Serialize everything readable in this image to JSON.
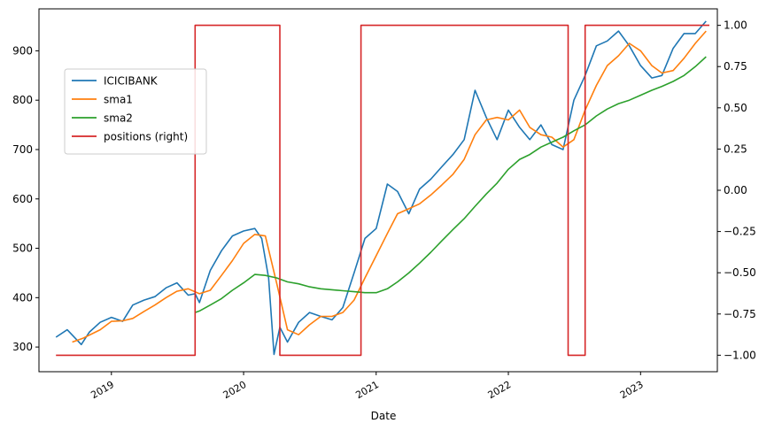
{
  "chart_data": {
    "type": "line",
    "title": "",
    "xlabel": "Date",
    "ylabel": "",
    "y2label": "",
    "xlim": [
      "2018-06-15",
      "2023-08-01"
    ],
    "ylim": [
      250,
      985
    ],
    "y2lim": [
      -1.1,
      1.1
    ],
    "x_ticks": [
      "2019",
      "2020",
      "2021",
      "2022",
      "2023"
    ],
    "x_tick_dates": [
      "2019-01-01",
      "2020-01-01",
      "2021-01-01",
      "2022-01-01",
      "2023-01-01"
    ],
    "y_ticks": [
      300,
      400,
      500,
      600,
      700,
      800,
      900
    ],
    "y2_ticks": [
      -1.0,
      -0.75,
      -0.5,
      -0.25,
      0.0,
      0.25,
      0.5,
      0.75,
      1.0
    ],
    "legend": {
      "placement": "upper-left",
      "entries": [
        "ICICIBANK",
        "sma1",
        "sma2",
        "positions (right)"
      ]
    },
    "grid": false,
    "series": [
      {
        "name": "ICICIBANK",
        "axis": "left",
        "color": "#1f77b4",
        "points": [
          [
            "2018-08-01",
            320
          ],
          [
            "2018-09-01",
            335
          ],
          [
            "2018-10-10",
            305
          ],
          [
            "2018-11-01",
            330
          ],
          [
            "2018-12-01",
            350
          ],
          [
            "2019-01-01",
            360
          ],
          [
            "2019-02-01",
            352
          ],
          [
            "2019-03-01",
            385
          ],
          [
            "2019-04-01",
            395
          ],
          [
            "2019-05-01",
            402
          ],
          [
            "2019-06-01",
            420
          ],
          [
            "2019-07-01",
            430
          ],
          [
            "2019-08-01",
            405
          ],
          [
            "2019-08-20",
            408
          ],
          [
            "2019-09-01",
            390
          ],
          [
            "2019-10-01",
            455
          ],
          [
            "2019-11-01",
            495
          ],
          [
            "2019-12-01",
            525
          ],
          [
            "2020-01-01",
            535
          ],
          [
            "2020-02-01",
            540
          ],
          [
            "2020-02-20",
            520
          ],
          [
            "2020-03-10",
            440
          ],
          [
            "2020-03-25",
            285
          ],
          [
            "2020-04-10",
            340
          ],
          [
            "2020-05-01",
            310
          ],
          [
            "2020-06-01",
            350
          ],
          [
            "2020-07-01",
            370
          ],
          [
            "2020-08-01",
            362
          ],
          [
            "2020-09-01",
            355
          ],
          [
            "2020-10-01",
            380
          ],
          [
            "2020-11-01",
            450
          ],
          [
            "2020-12-01",
            520
          ],
          [
            "2021-01-01",
            540
          ],
          [
            "2021-02-01",
            630
          ],
          [
            "2021-03-01",
            615
          ],
          [
            "2021-04-01",
            570
          ],
          [
            "2021-05-01",
            620
          ],
          [
            "2021-06-01",
            640
          ],
          [
            "2021-07-01",
            665
          ],
          [
            "2021-08-01",
            690
          ],
          [
            "2021-09-01",
            720
          ],
          [
            "2021-10-01",
            820
          ],
          [
            "2021-11-01",
            765
          ],
          [
            "2021-12-01",
            720
          ],
          [
            "2022-01-01",
            780
          ],
          [
            "2022-02-01",
            745
          ],
          [
            "2022-03-01",
            720
          ],
          [
            "2022-04-01",
            750
          ],
          [
            "2022-05-01",
            710
          ],
          [
            "2022-06-01",
            700
          ],
          [
            "2022-07-01",
            800
          ],
          [
            "2022-08-01",
            850
          ],
          [
            "2022-09-01",
            910
          ],
          [
            "2022-10-01",
            920
          ],
          [
            "2022-11-01",
            940
          ],
          [
            "2022-12-01",
            910
          ],
          [
            "2023-01-01",
            870
          ],
          [
            "2023-02-01",
            845
          ],
          [
            "2023-03-01",
            850
          ],
          [
            "2023-04-01",
            905
          ],
          [
            "2023-05-01",
            935
          ],
          [
            "2023-06-01",
            935
          ],
          [
            "2023-07-01",
            960
          ]
        ]
      },
      {
        "name": "sma1",
        "axis": "left",
        "color": "#ff7f0e",
        "points": [
          [
            "2018-09-15",
            310
          ],
          [
            "2018-10-15",
            318
          ],
          [
            "2018-12-01",
            335
          ],
          [
            "2019-01-01",
            352
          ],
          [
            "2019-02-01",
            353
          ],
          [
            "2019-03-01",
            358
          ],
          [
            "2019-04-01",
            372
          ],
          [
            "2019-05-01",
            385
          ],
          [
            "2019-06-01",
            400
          ],
          [
            "2019-07-01",
            413
          ],
          [
            "2019-08-01",
            418
          ],
          [
            "2019-09-01",
            408
          ],
          [
            "2019-10-01",
            415
          ],
          [
            "2019-11-01",
            445
          ],
          [
            "2019-12-01",
            475
          ],
          [
            "2020-01-01",
            510
          ],
          [
            "2020-02-01",
            528
          ],
          [
            "2020-03-01",
            525
          ],
          [
            "2020-04-01",
            430
          ],
          [
            "2020-05-01",
            335
          ],
          [
            "2020-06-01",
            325
          ],
          [
            "2020-07-01",
            345
          ],
          [
            "2020-08-01",
            362
          ],
          [
            "2020-09-01",
            362
          ],
          [
            "2020-10-01",
            370
          ],
          [
            "2020-11-01",
            395
          ],
          [
            "2020-12-01",
            440
          ],
          [
            "2021-01-01",
            485
          ],
          [
            "2021-02-01",
            530
          ],
          [
            "2021-03-01",
            570
          ],
          [
            "2021-04-01",
            580
          ],
          [
            "2021-05-01",
            590
          ],
          [
            "2021-06-01",
            608
          ],
          [
            "2021-07-01",
            628
          ],
          [
            "2021-08-01",
            650
          ],
          [
            "2021-09-01",
            680
          ],
          [
            "2021-10-01",
            730
          ],
          [
            "2021-11-01",
            760
          ],
          [
            "2021-12-01",
            765
          ],
          [
            "2022-01-01",
            760
          ],
          [
            "2022-02-01",
            780
          ],
          [
            "2022-03-01",
            745
          ],
          [
            "2022-04-01",
            730
          ],
          [
            "2022-05-01",
            725
          ],
          [
            "2022-06-01",
            705
          ],
          [
            "2022-07-01",
            720
          ],
          [
            "2022-08-01",
            780
          ],
          [
            "2022-09-01",
            830
          ],
          [
            "2022-10-01",
            870
          ],
          [
            "2022-11-01",
            890
          ],
          [
            "2022-12-01",
            915
          ],
          [
            "2023-01-01",
            900
          ],
          [
            "2023-02-01",
            870
          ],
          [
            "2023-03-01",
            855
          ],
          [
            "2023-04-01",
            860
          ],
          [
            "2023-05-01",
            885
          ],
          [
            "2023-06-01",
            915
          ],
          [
            "2023-07-01",
            940
          ]
        ]
      },
      {
        "name": "sma2",
        "axis": "left",
        "color": "#2ca02c",
        "points": [
          [
            "2019-08-20",
            370
          ],
          [
            "2019-09-01",
            373
          ],
          [
            "2019-10-01",
            385
          ],
          [
            "2019-11-01",
            398
          ],
          [
            "2019-12-01",
            415
          ],
          [
            "2020-01-01",
            430
          ],
          [
            "2020-02-01",
            447
          ],
          [
            "2020-03-01",
            445
          ],
          [
            "2020-04-01",
            440
          ],
          [
            "2020-05-01",
            432
          ],
          [
            "2020-06-01",
            428
          ],
          [
            "2020-07-01",
            422
          ],
          [
            "2020-08-01",
            418
          ],
          [
            "2020-09-01",
            416
          ],
          [
            "2020-10-01",
            414
          ],
          [
            "2020-11-01",
            412
          ],
          [
            "2020-12-01",
            410
          ],
          [
            "2021-01-01",
            410
          ],
          [
            "2021-02-01",
            418
          ],
          [
            "2021-03-01",
            432
          ],
          [
            "2021-04-01",
            450
          ],
          [
            "2021-05-01",
            470
          ],
          [
            "2021-06-01",
            492
          ],
          [
            "2021-07-01",
            515
          ],
          [
            "2021-08-01",
            538
          ],
          [
            "2021-09-01",
            560
          ],
          [
            "2021-10-01",
            585
          ],
          [
            "2021-11-01",
            610
          ],
          [
            "2021-12-01",
            632
          ],
          [
            "2022-01-01",
            660
          ],
          [
            "2022-02-01",
            680
          ],
          [
            "2022-03-01",
            690
          ],
          [
            "2022-04-01",
            705
          ],
          [
            "2022-05-01",
            715
          ],
          [
            "2022-06-01",
            725
          ],
          [
            "2022-07-01",
            738
          ],
          [
            "2022-08-01",
            750
          ],
          [
            "2022-09-01",
            768
          ],
          [
            "2022-10-01",
            782
          ],
          [
            "2022-11-01",
            793
          ],
          [
            "2022-12-01",
            800
          ],
          [
            "2023-01-01",
            810
          ],
          [
            "2023-02-01",
            820
          ],
          [
            "2023-03-01",
            828
          ],
          [
            "2023-04-01",
            838
          ],
          [
            "2023-05-01",
            850
          ],
          [
            "2023-06-01",
            868
          ],
          [
            "2023-07-01",
            888
          ]
        ]
      },
      {
        "name": "positions (right)",
        "axis": "right",
        "color": "#d62728",
        "step": true,
        "points": [
          [
            "2018-08-01",
            -1
          ],
          [
            "2019-08-20",
            -1
          ],
          [
            "2019-08-20",
            1
          ],
          [
            "2020-04-10",
            1
          ],
          [
            "2020-04-10",
            -1
          ],
          [
            "2020-11-20",
            -1
          ],
          [
            "2020-11-20",
            1
          ],
          [
            "2022-06-15",
            1
          ],
          [
            "2022-06-15",
            -1
          ],
          [
            "2022-08-01",
            -1
          ],
          [
            "2022-08-01",
            1
          ],
          [
            "2023-07-10",
            1
          ]
        ]
      }
    ]
  }
}
